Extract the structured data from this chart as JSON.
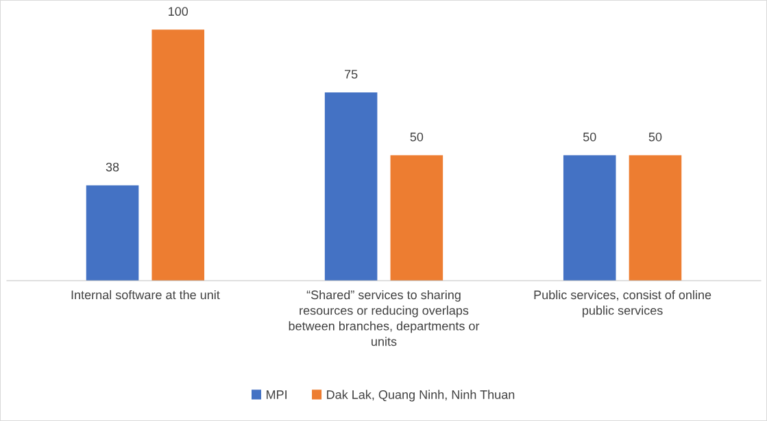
{
  "chart_data": {
    "type": "bar",
    "categories": [
      "Internal software at the unit",
      "“Shared” services to sharing resources or reducing overlaps between branches, departments or units",
      "Public services, consist of online public services"
    ],
    "series": [
      {
        "name": "MPI",
        "color": "#4472c4",
        "values": [
          38,
          75,
          50
        ]
      },
      {
        "name": "Dak Lak, Quang Ninh, Ninh Thuan",
        "color": "#ed7d31",
        "values": [
          100,
          50,
          50
        ]
      }
    ],
    "data_labels": true,
    "grid": false,
    "legend": "bottom"
  }
}
